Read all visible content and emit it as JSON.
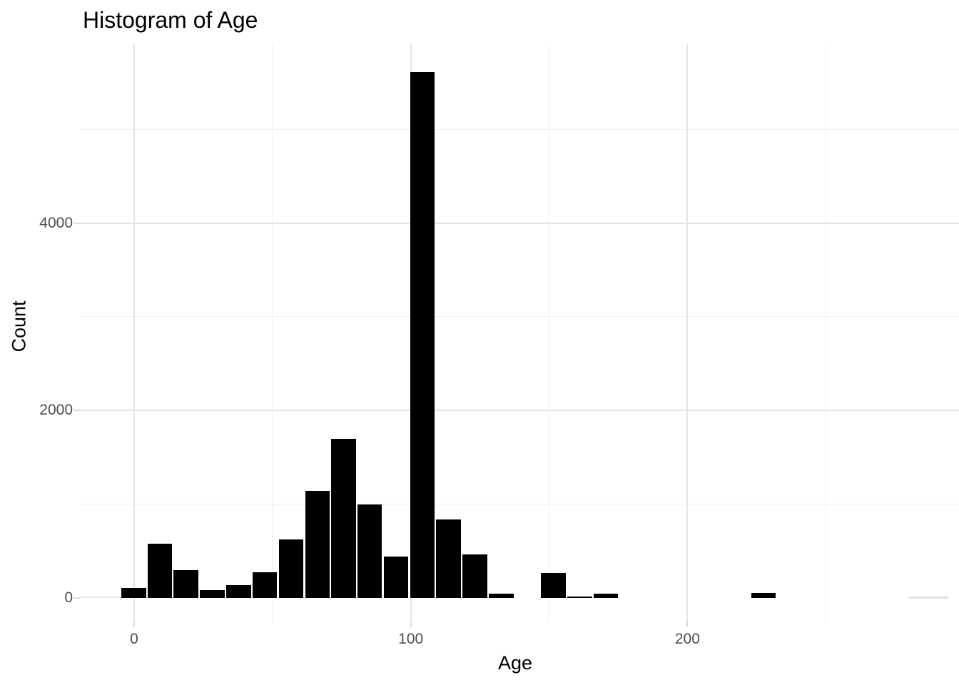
{
  "title": "Histogram of Age",
  "chart_data": {
    "type": "bar",
    "subtype": "histogram",
    "title": "Histogram of Age",
    "xlabel": "Age",
    "ylabel": "Count",
    "x_major_ticks": [
      0,
      100,
      200
    ],
    "x_minor_gridlines": [
      50,
      150,
      250
    ],
    "y_major_ticks": [
      0,
      2000,
      4000
    ],
    "y_minor_gridlines": [
      1000,
      3000,
      5000
    ],
    "xlim": [
      -19.6,
      298
    ],
    "ylim": [
      -280,
      5910
    ],
    "grid": "on",
    "legend": "none",
    "bar_color": "#000000",
    "bin_width": 9.5,
    "bins": [
      {
        "x0": -4.6,
        "x1": 4.3,
        "count": 110
      },
      {
        "x0": 4.8,
        "x1": 13.7,
        "count": 575
      },
      {
        "x0": 14.3,
        "x1": 23.2,
        "count": 300
      },
      {
        "x0": 23.8,
        "x1": 32.7,
        "count": 80
      },
      {
        "x0": 33.3,
        "x1": 42.2,
        "count": 135
      },
      {
        "x0": 42.8,
        "x1": 51.7,
        "count": 275
      },
      {
        "x0": 52.3,
        "x1": 61.2,
        "count": 625
      },
      {
        "x0": 61.8,
        "x1": 70.7,
        "count": 1140
      },
      {
        "x0": 71.2,
        "x1": 80.2,
        "count": 1700
      },
      {
        "x0": 80.7,
        "x1": 89.6,
        "count": 1000
      },
      {
        "x0": 90.2,
        "x1": 99.1,
        "count": 445
      },
      {
        "x0": 99.7,
        "x1": 108.6,
        "count": 5610
      },
      {
        "x0": 109.2,
        "x1": 118.1,
        "count": 835
      },
      {
        "x0": 118.7,
        "x1": 127.6,
        "count": 465
      },
      {
        "x0": 128.2,
        "x1": 137.1,
        "count": 45
      },
      {
        "x0": 137.7,
        "x1": 146.6,
        "count": 0
      },
      {
        "x0": 147.1,
        "x1": 156.1,
        "count": 265
      },
      {
        "x0": 156.6,
        "x1": 165.5,
        "count": 15
      },
      {
        "x0": 166.1,
        "x1": 175.0,
        "count": 45
      },
      {
        "x0": 175.6,
        "x1": 184.5,
        "count": 0
      },
      {
        "x0": 185.1,
        "x1": 194.0,
        "count": 0
      },
      {
        "x0": 194.6,
        "x1": 203.5,
        "count": 0
      },
      {
        "x0": 204.1,
        "x1": 213.0,
        "count": 0
      },
      {
        "x0": 213.6,
        "x1": 222.5,
        "count": 0
      },
      {
        "x0": 223.1,
        "x1": 232.0,
        "count": 50
      }
    ],
    "na_bar": {
      "x0": 280.1,
      "x1": 294.3,
      "count": 20,
      "color": "#e2e2e2"
    },
    "colors": {
      "background": "#ffffff",
      "bar": "#000000",
      "major_gridline": "#e5e5e5",
      "minor_gridline": "#efefef",
      "tick_text": "#4d4d4d",
      "title_text": "#000000",
      "baseline_stub": "#e9e9e9"
    }
  }
}
